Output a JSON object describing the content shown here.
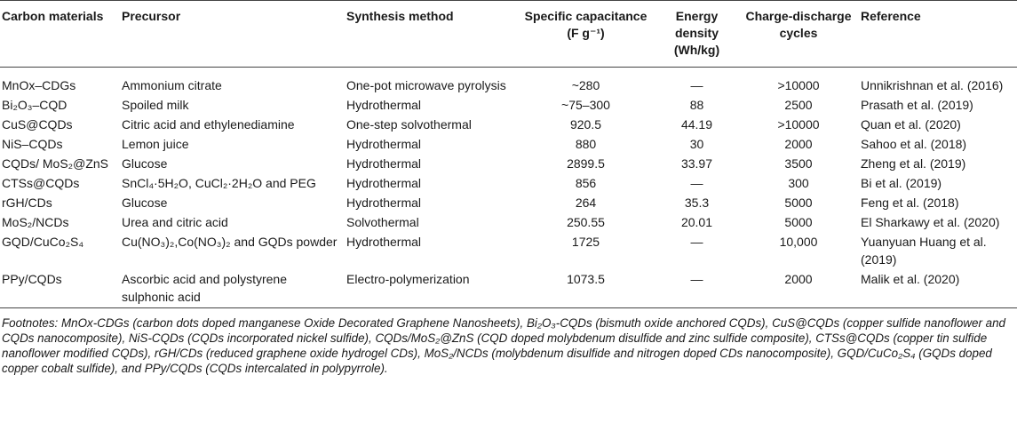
{
  "table": {
    "headers": [
      "Carbon materials",
      "Precursor",
      "Synthesis method",
      "Specific capacitance (F g⁻¹)",
      "Energy density (Wh/kg)",
      "Charge-discharge cycles",
      "Reference"
    ],
    "rows": [
      [
        "MnOx–CDGs",
        "Ammonium citrate",
        "One-pot microwave pyrolysis",
        "~280",
        "—",
        ">10000",
        "Unnikrishnan et al. (2016)"
      ],
      [
        "Bi₂O₃–CQD",
        "Spoiled milk",
        "Hydrothermal",
        "~75–300",
        "88",
        "2500",
        "Prasath et al. (2019)"
      ],
      [
        "CuS@CQDs",
        "Citric acid and ethylenediamine",
        "One-step solvothermal",
        "920.5",
        "44.19",
        ">10000",
        "Quan et al. (2020)"
      ],
      [
        "NiS–CQDs",
        "Lemon juice",
        "Hydrothermal",
        "880",
        "30",
        "2000",
        "Sahoo et al. (2018)"
      ],
      [
        "CQDs/ MoS₂@ZnS",
        "Glucose",
        "Hydrothermal",
        "2899.5",
        "33.97",
        "3500",
        "Zheng et al. (2019)"
      ],
      [
        "CTSs@CQDs",
        "SnCl₄·5H₂O, CuCl₂·2H₂O and PEG",
        "Hydrothermal",
        "856",
        "—",
        "300",
        "Bi et al. (2019)"
      ],
      [
        "rGH/CDs",
        "Glucose",
        "Hydrothermal",
        "264",
        "35.3",
        "5000",
        "Feng et al. (2018)"
      ],
      [
        "MoS₂/NCDs",
        "Urea and citric acid",
        "Solvothermal",
        "250.55",
        "20.01",
        "5000",
        "El Sharkawy et al. (2020)"
      ],
      [
        "GQD/CuCo₂S₄",
        "Cu(NO₃)₂,Co(NO₃)₂ and GQDs powder",
        "Hydrothermal",
        "1725",
        "—",
        "10,000",
        "Yuanyuan Huang et al. (2019)"
      ],
      [
        "PPy/CQDs",
        "Ascorbic acid and polystyrene sulphonic acid",
        "Electro-polymerization",
        "1073.5",
        "—",
        "2000",
        "Malik et al. (2020)"
      ]
    ],
    "footnote": "Footnotes: MnOx-CDGs (carbon dots doped manganese Oxide Decorated Graphene Nanosheets), Bi₂O₃-CQDs (bismuth oxide anchored CQDs), CuS@CQDs (copper sulfide nanoflower and CQDs nanocomposite), NiS-CQDs (CQDs incorporated nickel sulfide), CQDs/MoS₂@ZnS (CQD doped molybdenum disulfide and zinc sulfide composite), CTSs@CQDs (copper tin sulfide nanoflower modified CQDs), rGH/CDs (reduced graphene oxide hydrogel CDs), MoS₂/NCDs (molybdenum disulfide and nitrogen doped CDs nanocomposite), GQD/CuCo₂S₄ (GQDs doped copper cobalt sulfide), and PPy/CQDs (CQDs intercalated in polypyrrole)."
  }
}
